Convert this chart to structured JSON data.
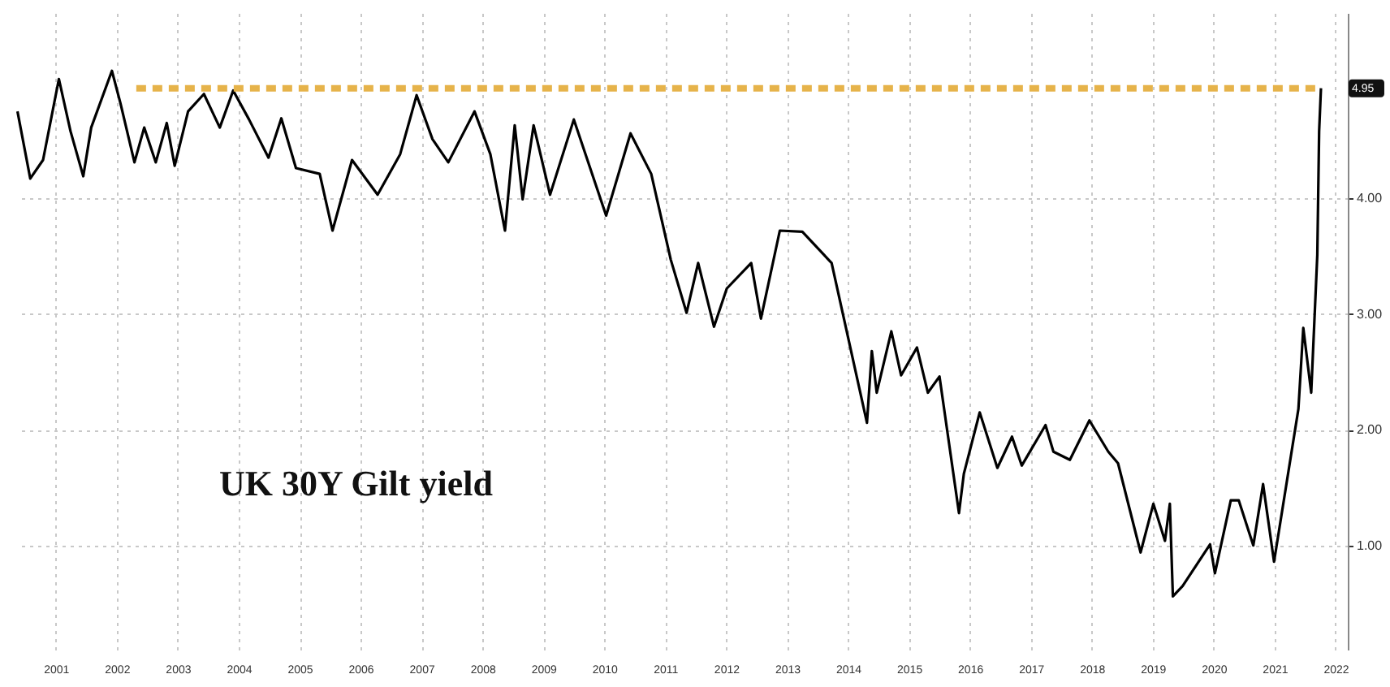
{
  "chart_data": {
    "type": "line",
    "annotations": [
      "UK 30Y Gilt yield",
      {
        "text": "4.95",
        "x": 2022.26,
        "y": 4.95
      }
    ],
    "xlim": [
      2000.85,
      2022.7
    ],
    "ylim": [
      0.1,
      5.6
    ],
    "xticks": [
      {
        "value": 2001.5,
        "label": "2001"
      },
      {
        "value": 2002.5,
        "label": "2002"
      },
      {
        "value": 2003.5,
        "label": "2003"
      },
      {
        "value": 2004.5,
        "label": "2004"
      },
      {
        "value": 2005.5,
        "label": "2005"
      },
      {
        "value": 2006.5,
        "label": "2006"
      },
      {
        "value": 2007.5,
        "label": "2007"
      },
      {
        "value": 2008.5,
        "label": "2008"
      },
      {
        "value": 2009.5,
        "label": "2009"
      },
      {
        "value": 2010.5,
        "label": "2010"
      },
      {
        "value": 2011.5,
        "label": "2011"
      },
      {
        "value": 2012.5,
        "label": "2012"
      },
      {
        "value": 2013.5,
        "label": "2013"
      },
      {
        "value": 2014.5,
        "label": "2014"
      },
      {
        "value": 2015.5,
        "label": "2015"
      },
      {
        "value": 2016.5,
        "label": "2016"
      },
      {
        "value": 2017.5,
        "label": "2017"
      },
      {
        "value": 2018.5,
        "label": "2018"
      },
      {
        "value": 2019.5,
        "label": "2019"
      },
      {
        "value": 2020.5,
        "label": "2020"
      },
      {
        "value": 2021.5,
        "label": "2021"
      },
      {
        "value": 2022.5,
        "label": "2022"
      }
    ],
    "yticks": [
      {
        "value": 1,
        "label": "1.00"
      },
      {
        "value": 2,
        "label": "2.00"
      },
      {
        "value": 3,
        "label": "3.00"
      },
      {
        "value": 4,
        "label": "4.00"
      }
    ],
    "grid": true,
    "series": [
      {
        "color": "#000000",
        "line_style": "solid",
        "x": [
          2000.87,
          2001.08,
          2001.29,
          2001.55,
          2001.74,
          2001.95,
          2002.08,
          2002.42,
          2002.56,
          2002.79,
          2002.95,
          2003.14,
          2003.32,
          2003.45,
          2003.67,
          2003.93,
          2004.19,
          2004.41,
          2004.67,
          2004.99,
          2005.2,
          2005.44,
          2005.83,
          2006.04,
          2006.36,
          2006.78,
          2007.15,
          2007.42,
          2007.68,
          2007.94,
          2008.37,
          2008.63,
          2008.87,
          2009.03,
          2009.16,
          2009.34,
          2009.61,
          2010.0,
          2010.53,
          2010.93,
          2011.27,
          2011.59,
          2011.85,
          2012.04,
          2012.3,
          2012.51,
          2012.91,
          2013.07,
          2013.38,
          2013.75,
          2014.23,
          2014.81,
          2014.89,
          2014.97,
          2015.21,
          2015.37,
          2015.63,
          2015.81,
          2016.0,
          2016.32,
          2016.4,
          2016.66,
          2016.95,
          2017.19,
          2017.35,
          2017.74,
          2017.87,
          2018.14,
          2018.46,
          2018.77,
          2018.93,
          2019.3,
          2019.51,
          2019.7,
          2019.78,
          2019.83,
          2019.99,
          2020.44,
          2020.52,
          2020.78,
          2020.91,
          2021.15,
          2021.31,
          2021.49,
          2021.89,
          2021.97,
          2022.1,
          2022.2,
          2022.23,
          2022.26
        ],
        "values": [
          4.75,
          4.17,
          4.33,
          5.03,
          4.58,
          4.19,
          4.61,
          5.1,
          4.82,
          4.31,
          4.61,
          4.31,
          4.65,
          4.28,
          4.75,
          4.9,
          4.61,
          4.93,
          4.68,
          4.35,
          4.69,
          4.26,
          4.21,
          3.72,
          4.33,
          4.03,
          4.38,
          4.89,
          4.51,
          4.31,
          4.75,
          4.38,
          3.72,
          4.63,
          3.99,
          4.63,
          4.03,
          4.68,
          3.85,
          4.56,
          4.21,
          3.47,
          3.01,
          3.44,
          2.89,
          3.22,
          3.44,
          2.96,
          3.72,
          3.71,
          3.44,
          2.06,
          2.68,
          2.32,
          2.85,
          2.47,
          2.71,
          2.32,
          2.46,
          1.28,
          1.62,
          2.15,
          1.67,
          1.94,
          1.69,
          2.04,
          1.81,
          1.74,
          2.08,
          1.81,
          1.71,
          0.94,
          1.36,
          1.04,
          1.36,
          0.56,
          0.65,
          1.01,
          0.76,
          1.39,
          1.39,
          1.0,
          1.53,
          0.86,
          2.18,
          2.88,
          2.32,
          3.51,
          4.58,
          4.95
        ]
      },
      {
        "color": "#e6b34a",
        "line_style": "dashed",
        "x": [
          2002.82,
          2022.26
        ],
        "values": [
          4.95,
          4.95
        ]
      }
    ]
  }
}
